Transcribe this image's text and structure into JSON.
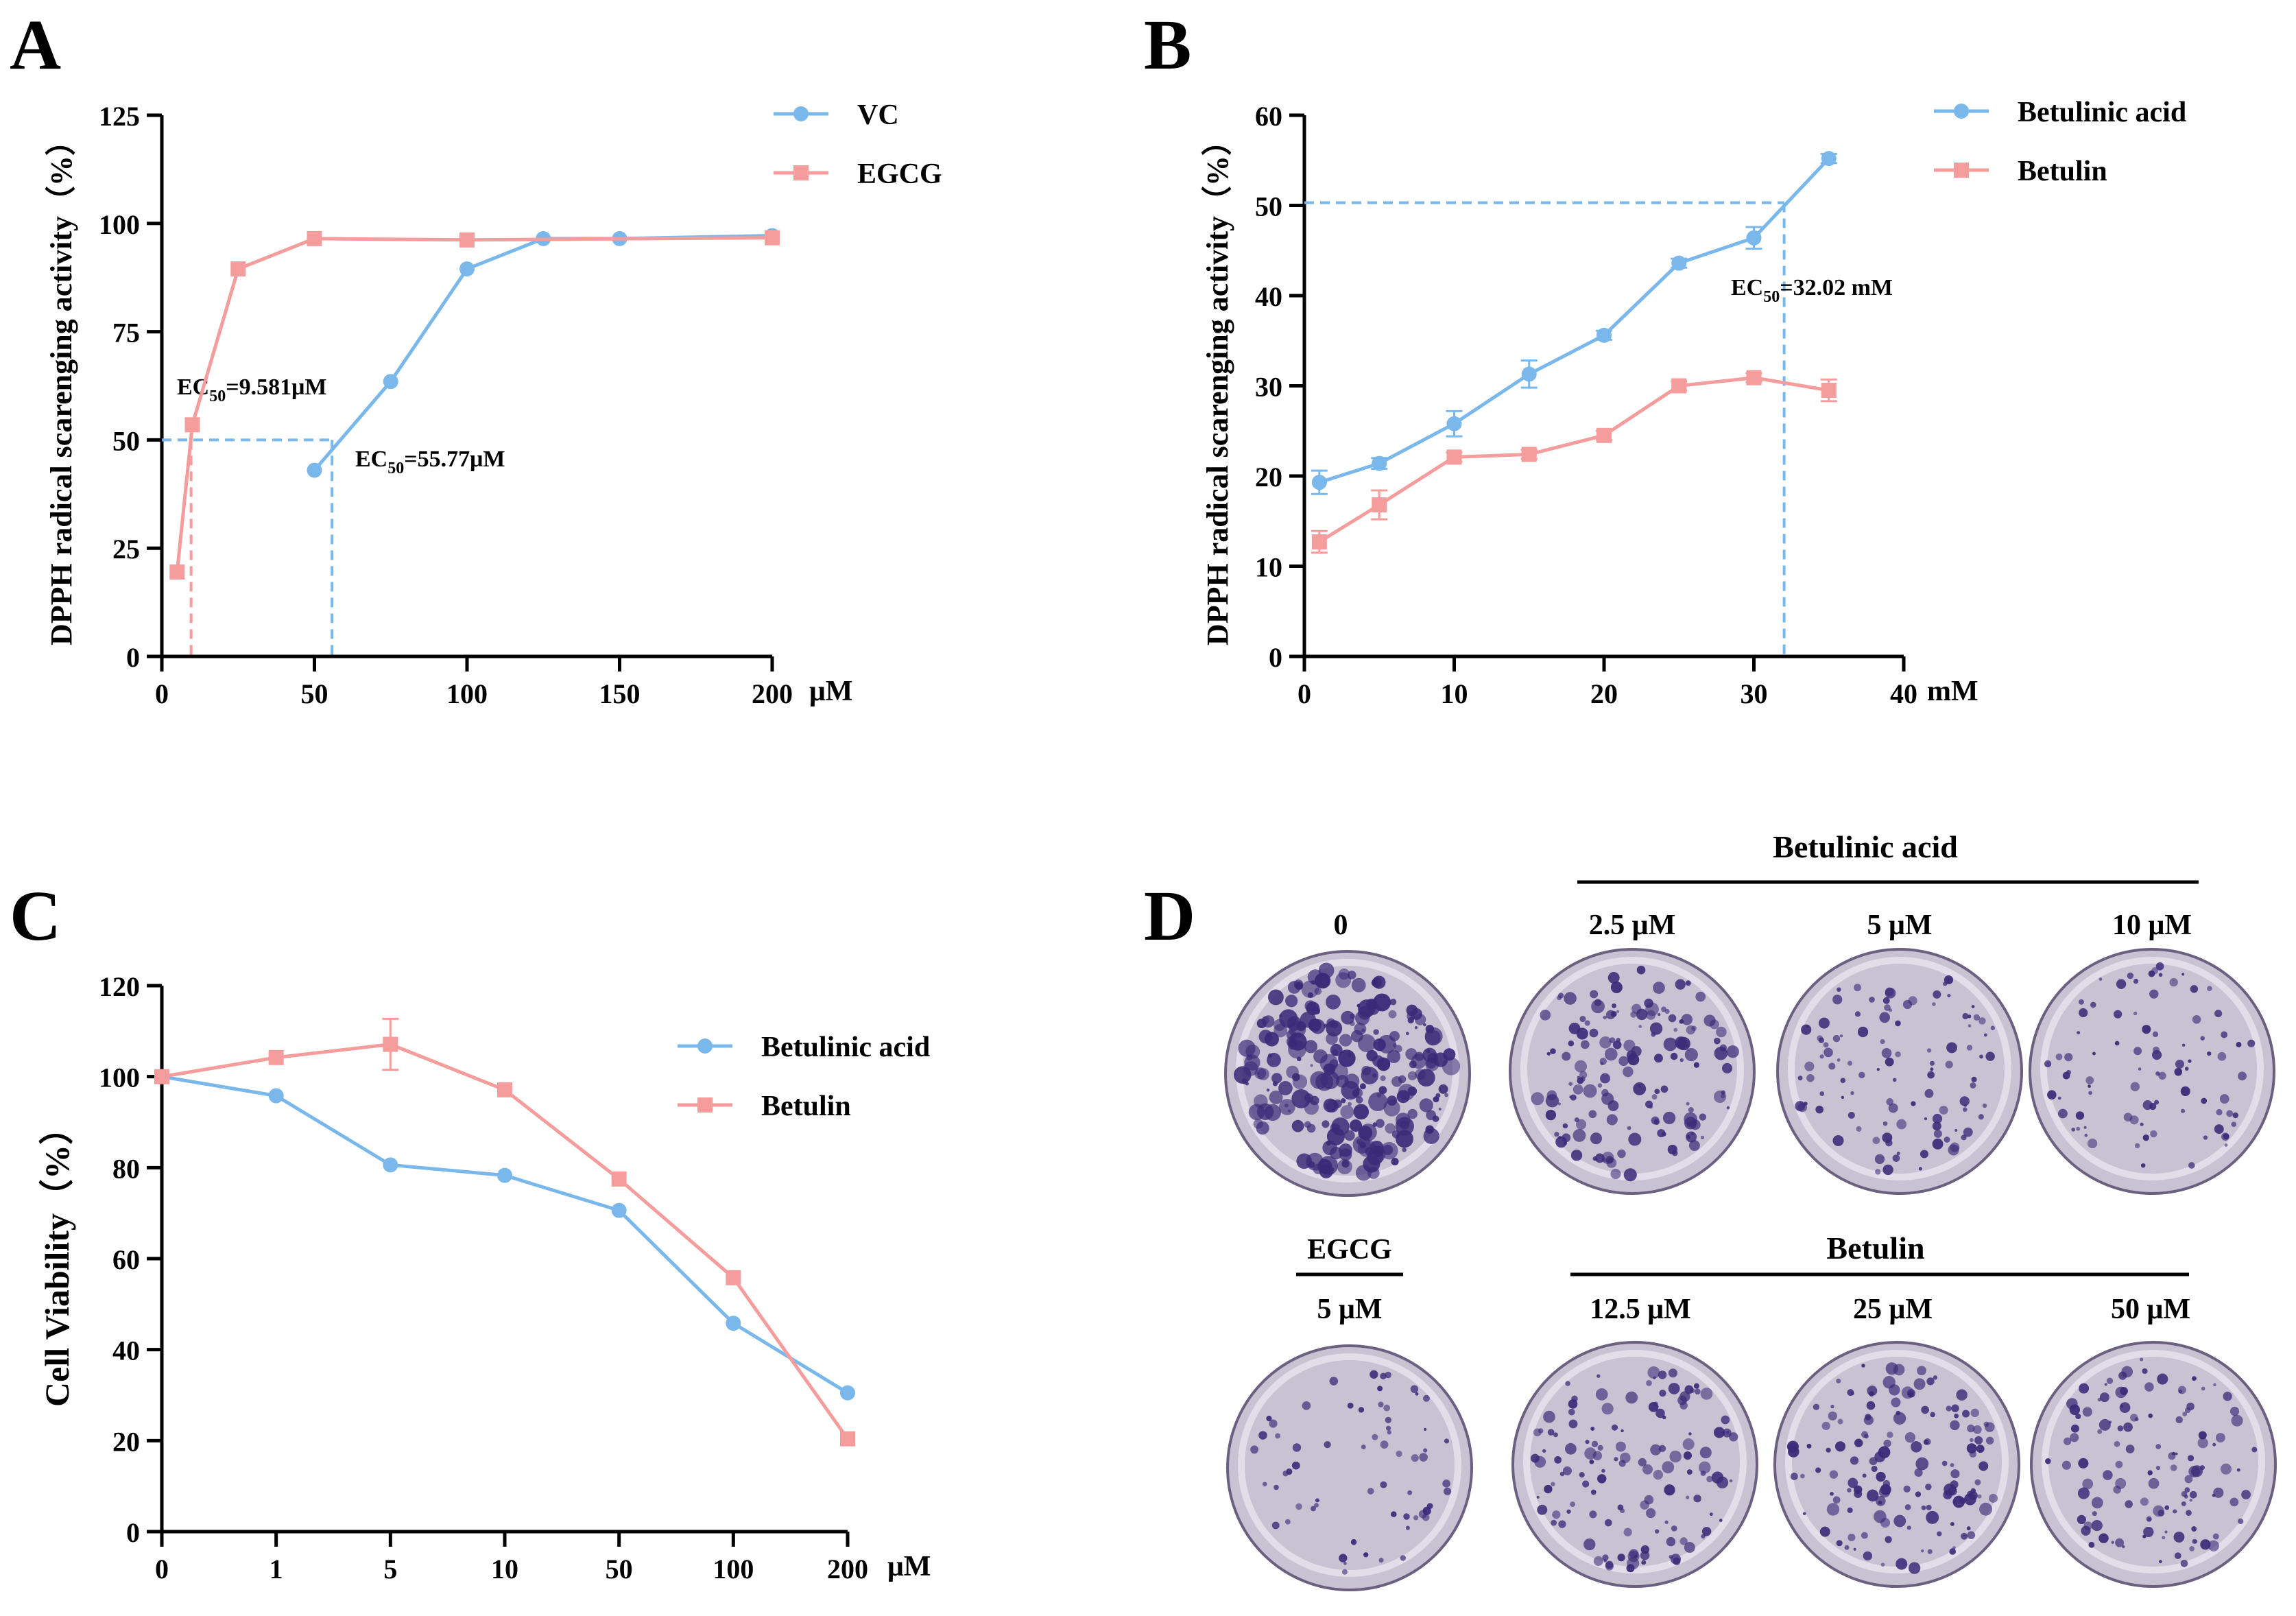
{
  "colors": {
    "blue": "#7ab8ec",
    "pink": "#f59c9c",
    "axis": "#000000",
    "plate_bg": "#c9c2d3",
    "plate_rim": "#e8e4ee",
    "colony": "#3a2a78",
    "plate_edge": "#6b6080"
  },
  "panel_letters": [
    "A",
    "B",
    "C",
    "D"
  ],
  "chart_data": [
    {
      "panel": "A",
      "type": "line",
      "ylabel": "DPPH radical scarenging activity（%）",
      "xunit": "μM",
      "xlim": [
        0,
        200
      ],
      "ylim": [
        0,
        125
      ],
      "xticks": [
        "0",
        "50",
        "100",
        "150",
        "200"
      ],
      "xtick_values": [
        0,
        50,
        100,
        150,
        200
      ],
      "yticks": [
        "0",
        "25",
        "50",
        "75",
        "100",
        "125"
      ],
      "ytick_values": [
        0,
        25,
        50,
        75,
        100,
        125
      ],
      "legend_position": "top-right",
      "series": [
        {
          "name": "VC",
          "color": "blue",
          "marker": "circle",
          "x": [
            50,
            75,
            100,
            125,
            150,
            200
          ],
          "y": [
            43,
            63.5,
            89.5,
            96.5,
            96.5,
            97.2
          ],
          "err": [
            0,
            0,
            0,
            0,
            0,
            0
          ]
        },
        {
          "name": "EGCG",
          "color": "pink",
          "marker": "square",
          "x": [
            5,
            10,
            25,
            50,
            100,
            200
          ],
          "y": [
            19.5,
            53.5,
            89.5,
            96.5,
            96.2,
            96.7
          ],
          "err": [
            0,
            0,
            0,
            0,
            0,
            0
          ]
        }
      ],
      "ec50_lines": [
        {
          "color": "pink",
          "x": 9.581,
          "y": 50,
          "label_main": "EC",
          "label_sub": "50",
          "label_rest": "=9.581μM"
        },
        {
          "color": "blue",
          "x": 55.77,
          "y": 50,
          "label_main": "EC",
          "label_sub": "50",
          "label_rest": "=55.77μM"
        }
      ]
    },
    {
      "panel": "B",
      "type": "line",
      "ylabel": "DPPH radical scarenging activity（%）",
      "xunit": "mM",
      "xlim": [
        0,
        40
      ],
      "ylim": [
        0,
        60
      ],
      "xticks": [
        "0",
        "10",
        "20",
        "30",
        "40"
      ],
      "xtick_values": [
        0,
        10,
        20,
        30,
        40
      ],
      "yticks": [
        "0",
        "10",
        "20",
        "30",
        "40",
        "50",
        "60"
      ],
      "ytick_values": [
        0,
        10,
        20,
        30,
        40,
        50,
        60
      ],
      "legend_position": "top-right",
      "series": [
        {
          "name": "Betulinic acid",
          "color": "blue",
          "marker": "circle",
          "x": [
            1,
            5,
            10,
            15,
            20,
            25,
            30,
            35
          ],
          "y": [
            19.3,
            21.4,
            25.8,
            31.3,
            35.6,
            43.6,
            46.4,
            55.2
          ],
          "err": [
            1.3,
            0.6,
            1.4,
            1.5,
            0.5,
            0.5,
            1.2,
            0.5
          ]
        },
        {
          "name": "Betulin",
          "color": "pink",
          "marker": "square",
          "x": [
            1,
            5,
            10,
            15,
            20,
            25,
            30,
            35
          ],
          "y": [
            12.7,
            16.8,
            22.1,
            22.4,
            24.5,
            30.0,
            30.9,
            29.5
          ],
          "err": [
            1.2,
            1.6,
            0.5,
            0.5,
            0.5,
            0.5,
            0.5,
            1.2
          ]
        }
      ],
      "ec50_lines": [
        {
          "color": "blue",
          "x": 32.02,
          "y": 50.3,
          "label_main": "EC",
          "label_sub": "50",
          "label_rest": "=32.02 mM"
        }
      ]
    },
    {
      "panel": "C",
      "type": "line",
      "ylabel": "Cell Viability（%）",
      "xunit": "μM",
      "categories": [
        "0",
        "1",
        "5",
        "10",
        "50",
        "100",
        "200"
      ],
      "ylim": [
        0,
        120
      ],
      "yticks": [
        "0",
        "20",
        "40",
        "60",
        "80",
        "100",
        "120"
      ],
      "ytick_values": [
        0,
        20,
        40,
        60,
        80,
        100,
        120
      ],
      "legend_position": "top-right",
      "series": [
        {
          "name": "Betulinic acid",
          "color": "blue",
          "marker": "circle",
          "values": [
            100,
            95.8,
            80.6,
            78.3,
            70.6,
            45.8,
            30.5
          ],
          "err": [
            0,
            0,
            0,
            0,
            0,
            0,
            0
          ]
        },
        {
          "name": "Betulin",
          "color": "pink",
          "marker": "square",
          "values": [
            100,
            104.2,
            107.1,
            97.1,
            77.5,
            55.8,
            20.4
          ],
          "err": [
            0,
            0,
            5.6,
            0,
            0,
            0,
            0
          ]
        }
      ]
    }
  ],
  "panel_d": {
    "group_top_label": "Betulinic acid",
    "group_bottom_label": "Betulin",
    "egcg_label": "EGCG",
    "top_labels": [
      "0",
      "2.5 μM",
      "5 μM",
      "10 μM"
    ],
    "bottom_labels": [
      "5 μM",
      "12.5 μM",
      "25 μM",
      "50 μM"
    ],
    "colony_density_top": [
      1.0,
      0.55,
      0.35,
      0.25
    ],
    "colony_density_bottom": [
      0.15,
      0.45,
      0.5,
      0.4
    ]
  }
}
